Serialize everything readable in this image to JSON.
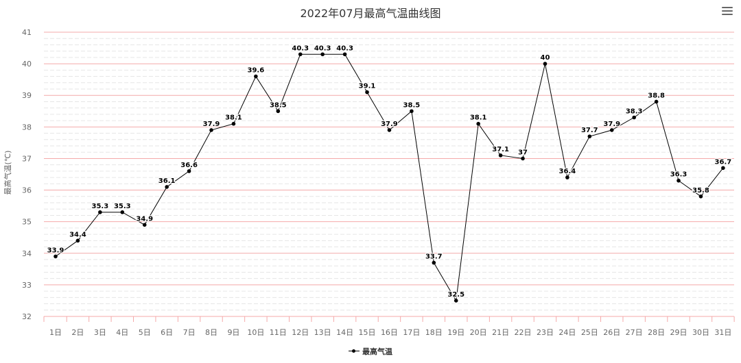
{
  "chart_title": "2022年07月最高气温曲线图",
  "menu_icon": "hamburger-menu-icon",
  "colors": {
    "line": "#000000",
    "major_grid": "#f4a9a9",
    "minor_grid": "#e6e6e6",
    "axis": "#f4a9a9"
  },
  "chart_data": {
    "type": "line",
    "title": "2022年07月最高气温曲线图",
    "xlabel": "",
    "ylabel": "最高气温(℃)",
    "ylim": [
      32,
      41
    ],
    "yticks": [
      "32",
      "33",
      "34",
      "35",
      "36",
      "37",
      "38",
      "39",
      "40",
      "41"
    ],
    "categories": [
      "1日",
      "2日",
      "3日",
      "4日",
      "5日",
      "6日",
      "7日",
      "8日",
      "9日",
      "10日",
      "11日",
      "12日",
      "13日",
      "14日",
      "15日",
      "16日",
      "17日",
      "18日",
      "19日",
      "20日",
      "21日",
      "22日",
      "23日",
      "24日",
      "25日",
      "26日",
      "27日",
      "28日",
      "29日",
      "30日",
      "31日"
    ],
    "series": [
      {
        "name": "最高气温",
        "values": [
          33.9,
          34.4,
          35.3,
          35.3,
          34.9,
          36.1,
          36.6,
          37.9,
          38.1,
          39.6,
          38.5,
          40.3,
          40.3,
          40.3,
          39.1,
          37.9,
          38.5,
          33.7,
          32.5,
          38.1,
          37.1,
          37.0,
          40.0,
          36.4,
          37.7,
          37.9,
          38.3,
          38.8,
          36.3,
          35.8,
          36.7
        ],
        "labels": [
          "33.9",
          "34.4",
          "35.3",
          "35.3",
          "34.9",
          "36.1",
          "36.6",
          "37.9",
          "38.1",
          "39.6",
          "38.5",
          "40.3",
          "40.3",
          "40.3",
          "39.1",
          "37.9",
          "38.5",
          "33.7",
          "32.5",
          "38.1",
          "37.1",
          "37",
          "40",
          "36.4",
          "37.7",
          "37.9",
          "38.3",
          "38.8",
          "36.3",
          "35.8",
          "36.7"
        ]
      }
    ],
    "grid": true,
    "legend_position": "bottom-center"
  }
}
